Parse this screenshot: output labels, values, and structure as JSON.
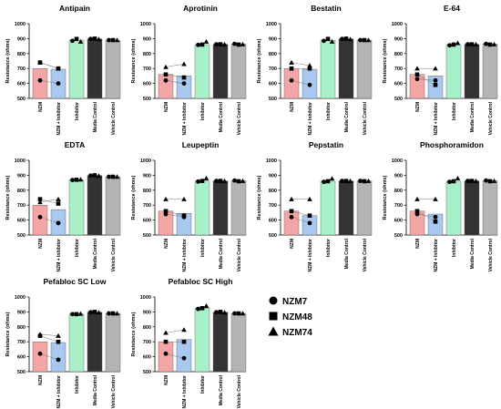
{
  "conditions": [
    "NZM",
    "NZM + Inhibitor",
    "Inhibitor",
    "Media Control",
    "Vehicle Control"
  ],
  "colors": [
    "#f4a6a6",
    "#a8c8f0",
    "#a8f0c8",
    "#333333",
    "#b4b4b4"
  ],
  "ylabel": "Resistance (ohms)",
  "legend": [
    {
      "label": "NZM7",
      "marker": "circle"
    },
    {
      "label": "NZM48",
      "marker": "square"
    },
    {
      "label": "NZM74",
      "marker": "triangle"
    }
  ],
  "chart_data": [
    {
      "type": "bar",
      "title": "Antipain",
      "ylabel": "Resistance (ohms)",
      "ylim": [
        500,
        1000
      ],
      "yticks": [
        500,
        600,
        700,
        800,
        900,
        1000
      ],
      "categories": [
        "NZM",
        "NZM + Inhibitor",
        "Inhibitor",
        "Media Control",
        "Vehicle Control"
      ],
      "values": [
        700,
        695,
        890,
        898,
        890
      ],
      "points": {
        "NZM7": [
          620,
          600,
          885,
          898,
          890
        ],
        "NZM48": [
          740,
          700,
          898,
          900,
          890
        ],
        "NZM74": [
          740,
          700,
          880,
          896,
          890
        ]
      }
    },
    {
      "type": "bar",
      "title": "Aprotinin",
      "ylabel": "Resistance (ohms)",
      "ylim": [
        500,
        1000
      ],
      "yticks": [
        500,
        600,
        700,
        800,
        900,
        1000
      ],
      "categories": [
        "NZM",
        "NZM + Inhibitor",
        "Inhibitor",
        "Media Control",
        "Vehicle Control"
      ],
      "values": [
        660,
        650,
        860,
        862,
        864
      ],
      "points": {
        "NZM7": [
          620,
          600,
          858,
          862,
          865
        ],
        "NZM48": [
          660,
          640,
          860,
          862,
          860
        ],
        "NZM74": [
          710,
          730,
          880,
          862,
          862
        ]
      }
    },
    {
      "type": "bar",
      "title": "Bestatin",
      "ylabel": "Resistance (ohms)",
      "ylim": [
        500,
        1000
      ],
      "yticks": [
        500,
        600,
        700,
        800,
        900,
        1000
      ],
      "categories": [
        "NZM",
        "NZM + Inhibitor",
        "Inhibitor",
        "Media Control",
        "Vehicle Control"
      ],
      "values": [
        700,
        695,
        890,
        898,
        890
      ],
      "points": {
        "NZM7": [
          620,
          590,
          885,
          898,
          890
        ],
        "NZM48": [
          700,
          700,
          898,
          900,
          890
        ],
        "NZM74": [
          740,
          720,
          880,
          896,
          890
        ]
      }
    },
    {
      "type": "bar",
      "title": "E-64",
      "ylabel": "Resistance (ohms)",
      "ylim": [
        500,
        1000
      ],
      "yticks": [
        500,
        600,
        700,
        800,
        900,
        1000
      ],
      "categories": [
        "NZM",
        "NZM + Inhibitor",
        "Inhibitor",
        "Media Control",
        "Vehicle Control"
      ],
      "values": [
        660,
        650,
        860,
        862,
        864
      ],
      "points": {
        "NZM7": [
          630,
          620,
          855,
          862,
          865
        ],
        "NZM48": [
          660,
          590,
          860,
          862,
          860
        ],
        "NZM74": [
          700,
          700,
          870,
          862,
          862
        ]
      }
    },
    {
      "type": "bar",
      "title": "EDTA",
      "ylabel": "Resistance (ohms)",
      "ylim": [
        500,
        1000
      ],
      "yticks": [
        500,
        600,
        700,
        800,
        900,
        1000
      ],
      "categories": [
        "NZM",
        "NZM + Inhibitor",
        "Inhibitor",
        "Media Control",
        "Vehicle Control"
      ],
      "values": [
        700,
        670,
        870,
        898,
        890
      ],
      "points": {
        "NZM7": [
          620,
          580,
          868,
          898,
          890
        ],
        "NZM48": [
          740,
          710,
          870,
          900,
          890
        ],
        "NZM74": [
          720,
          740,
          872,
          896,
          890
        ]
      }
    },
    {
      "type": "bar",
      "title": "Leupeptin",
      "ylabel": "Resistance (ohms)",
      "ylim": [
        500,
        1000
      ],
      "yticks": [
        500,
        600,
        700,
        800,
        900,
        1000
      ],
      "categories": [
        "NZM",
        "NZM + Inhibitor",
        "Inhibitor",
        "Media Control",
        "Vehicle Control"
      ],
      "values": [
        660,
        645,
        862,
        862,
        864
      ],
      "points": {
        "NZM7": [
          640,
          620,
          858,
          862,
          865
        ],
        "NZM48": [
          660,
          630,
          862,
          862,
          860
        ],
        "NZM74": [
          740,
          740,
          880,
          862,
          862
        ]
      }
    },
    {
      "type": "bar",
      "title": "Pepstatin",
      "ylabel": "Resistance (ohms)",
      "ylim": [
        500,
        1000
      ],
      "yticks": [
        500,
        600,
        700,
        800,
        900,
        1000
      ],
      "categories": [
        "NZM",
        "NZM + Inhibitor",
        "Inhibitor",
        "Media Control",
        "Vehicle Control"
      ],
      "values": [
        660,
        630,
        860,
        862,
        862
      ],
      "points": {
        "NZM7": [
          620,
          580,
          856,
          862,
          862
        ],
        "NZM48": [
          660,
          630,
          860,
          862,
          860
        ],
        "NZM74": [
          740,
          740,
          878,
          862,
          862
        ]
      }
    },
    {
      "type": "bar",
      "title": "Phosphoramidon",
      "ylabel": "Resistance (ohms)",
      "ylim": [
        500,
        1000
      ],
      "yticks": [
        500,
        600,
        700,
        800,
        900,
        1000
      ],
      "categories": [
        "NZM",
        "NZM + Inhibitor",
        "Inhibitor",
        "Media Control",
        "Vehicle Control"
      ],
      "values": [
        660,
        640,
        860,
        862,
        864
      ],
      "points": {
        "NZM7": [
          640,
          620,
          856,
          862,
          865
        ],
        "NZM48": [
          660,
          590,
          860,
          862,
          860
        ],
        "NZM74": [
          740,
          740,
          880,
          862,
          862
        ]
      }
    },
    {
      "type": "bar",
      "title": "Pefabloc SC Low",
      "ylabel": "Resistance (ohms)",
      "ylim": [
        500,
        1000
      ],
      "yticks": [
        500,
        600,
        700,
        800,
        900,
        1000
      ],
      "categories": [
        "NZM",
        "NZM + Inhibitor",
        "Inhibitor",
        "Media Control",
        "Vehicle Control"
      ],
      "values": [
        700,
        695,
        885,
        898,
        890
      ],
      "points": {
        "NZM7": [
          620,
          580,
          885,
          898,
          890
        ],
        "NZM48": [
          740,
          700,
          885,
          900,
          890
        ],
        "NZM74": [
          750,
          740,
          888,
          896,
          890
        ]
      }
    },
    {
      "type": "bar",
      "title": "Pefabloc SC High",
      "ylabel": "Resistance (ohms)",
      "ylim": [
        500,
        1000
      ],
      "yticks": [
        500,
        600,
        700,
        800,
        900,
        1000
      ],
      "categories": [
        "NZM",
        "NZM + Inhibitor",
        "Inhibitor",
        "Media Control",
        "Vehicle Control"
      ],
      "values": [
        700,
        715,
        925,
        898,
        890
      ],
      "points": {
        "NZM7": [
          620,
          590,
          920,
          898,
          890
        ],
        "NZM48": [
          700,
          700,
          925,
          900,
          890
        ],
        "NZM74": [
          760,
          780,
          940,
          896,
          890
        ]
      }
    }
  ]
}
